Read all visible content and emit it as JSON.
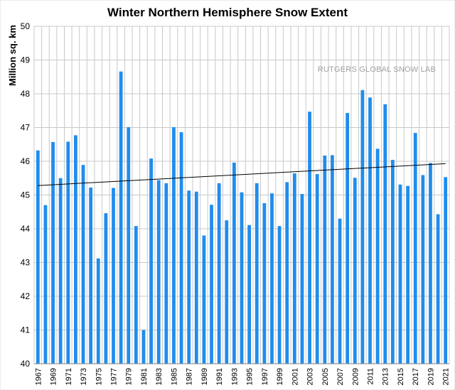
{
  "chart_data": {
    "type": "bar",
    "title": "Winter Northern Hemisphere Snow Extent",
    "ylabel": "Million sq. km",
    "xlabel": "",
    "watermark": "RUTGERS GLOBAL SNOW LAB",
    "ylim": [
      40,
      50
    ],
    "yticks": [
      "40",
      "41",
      "42",
      "43",
      "44",
      "45",
      "46",
      "47",
      "48",
      "49",
      "50"
    ],
    "grid": true,
    "legend": "none",
    "bar_color": "#1f8ded",
    "trend_color": "#000000",
    "trend": [
      45.28,
      45.93
    ],
    "years": [
      1967,
      1968,
      1969,
      1970,
      1971,
      1972,
      1973,
      1974,
      1975,
      1976,
      1977,
      1978,
      1979,
      1980,
      1981,
      1982,
      1983,
      1984,
      1985,
      1986,
      1987,
      1988,
      1989,
      1990,
      1991,
      1992,
      1993,
      1994,
      1995,
      1996,
      1997,
      1998,
      1999,
      2000,
      2001,
      2002,
      2003,
      2004,
      2005,
      2006,
      2007,
      2008,
      2009,
      2010,
      2011,
      2012,
      2013,
      2014,
      2015,
      2016,
      2017,
      2018,
      2019,
      2020,
      2021
    ],
    "xtick_labels": [
      "1967",
      "1969",
      "1971",
      "1973",
      "1975",
      "1977",
      "1979",
      "1981",
      "1983",
      "1985",
      "1987",
      "1989",
      "1991",
      "1993",
      "1995",
      "1997",
      "1999",
      "2001",
      "2003",
      "2005",
      "2007",
      "2009",
      "2011",
      "2013",
      "2015",
      "2017",
      "2019",
      "2021"
    ],
    "values": [
      46.32,
      44.7,
      46.57,
      45.5,
      46.58,
      46.77,
      45.89,
      45.22,
      43.12,
      44.46,
      45.21,
      48.66,
      47.01,
      44.08,
      41.0,
      46.08,
      45.44,
      45.35,
      47.01,
      46.86,
      45.13,
      45.1,
      43.8,
      44.71,
      45.35,
      44.25,
      45.96,
      45.08,
      44.11,
      45.35,
      44.76,
      45.05,
      44.08,
      45.38,
      45.64,
      45.03,
      47.47,
      45.62,
      46.17,
      46.18,
      44.3,
      47.43,
      45.51,
      48.11,
      47.89,
      46.37,
      47.69,
      46.04,
      45.31,
      45.27,
      46.84,
      45.59,
      45.95,
      44.43,
      45.53
    ]
  }
}
